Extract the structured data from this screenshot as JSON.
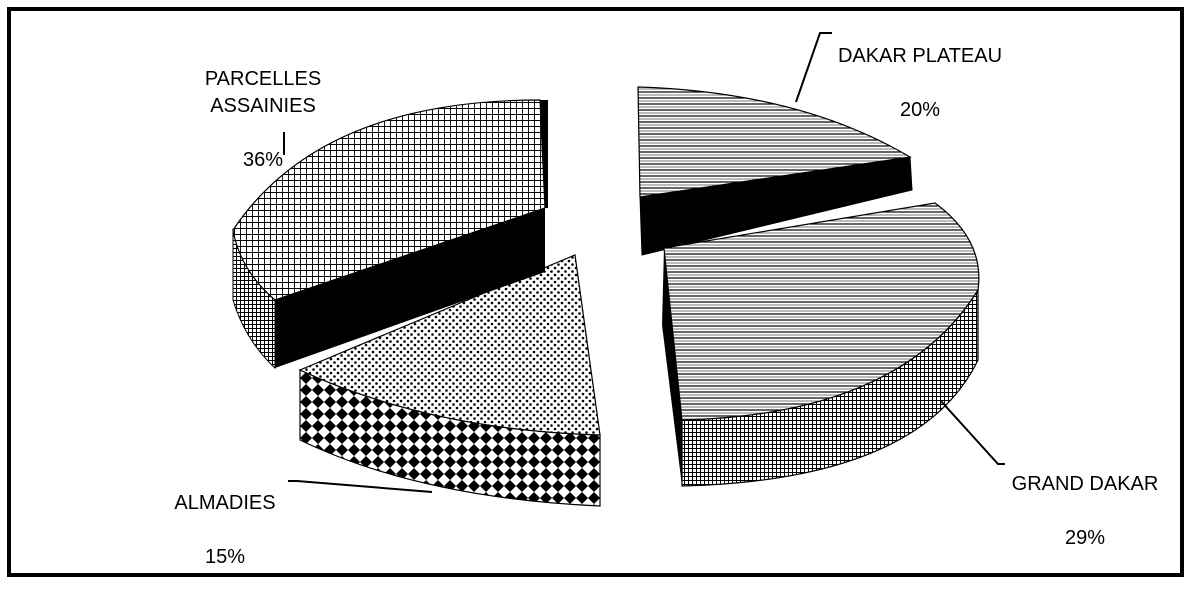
{
  "chart_data": {
    "type": "pie",
    "style": "3d-exploded",
    "slices": [
      {
        "name": "DAKAR PLATEAU",
        "label": "DAKAR PLATEAU",
        "value_label": "20%",
        "value": 20
      },
      {
        "name": "GRAND DAKAR",
        "label": "GRAND DAKAR",
        "value_label": "29%",
        "value": 29
      },
      {
        "name": "ALMADIES",
        "label": "ALMADIES",
        "value_label": "15%",
        "value": 15
      },
      {
        "name": "PARCELLES ASSAINIES",
        "label": "PARCELLES\nASSAINIES",
        "value_label": "36%",
        "value": 36
      }
    ],
    "colors": {
      "side": "#000000",
      "fill": "#ffffff"
    }
  }
}
